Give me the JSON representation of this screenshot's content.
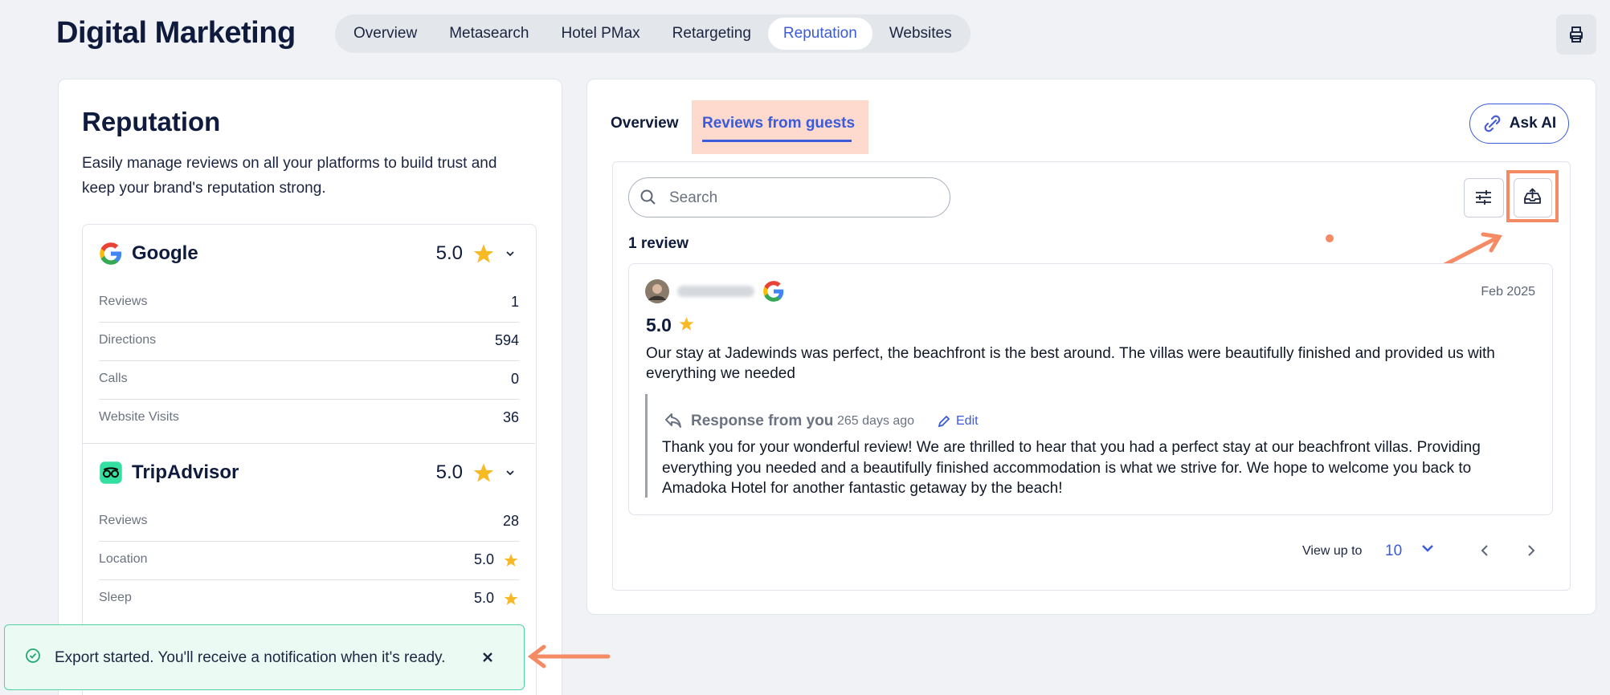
{
  "header": {
    "title": "Digital Marketing",
    "tabs": [
      "Overview",
      "Metasearch",
      "Hotel PMax",
      "Retargeting",
      "Reputation",
      "Websites"
    ],
    "active_tab": 4
  },
  "sidebar": {
    "title": "Reputation",
    "description": "Easily manage reviews on all your platforms to build trust and keep your brand's reputation strong.",
    "platforms": [
      {
        "name": "Google",
        "rating": "5.0",
        "rows": [
          {
            "label": "Reviews",
            "value": "1"
          },
          {
            "label": "Directions",
            "value": "594"
          },
          {
            "label": "Calls",
            "value": "0"
          },
          {
            "label": "Website Visits",
            "value": "36"
          }
        ]
      },
      {
        "name": "TripAdvisor",
        "rating": "5.0",
        "rows": [
          {
            "label": "Reviews",
            "value": "28"
          },
          {
            "label": "Location",
            "value": "5.0",
            "star": true
          },
          {
            "label": "Sleep",
            "value": "5.0",
            "star": true
          }
        ]
      }
    ]
  },
  "main": {
    "tabs": [
      "Overview",
      "Reviews from guests"
    ],
    "active_tab": 1,
    "ask_ai": "Ask AI",
    "search_placeholder": "Search",
    "count": "1 review",
    "review": {
      "date": "Feb 2025",
      "rating": "5.0",
      "text": "Our stay at Jadewinds was perfect, the beachfront is the best around. The villas were beautifully finished and provided us with everything we needed",
      "response": {
        "title": "Response from you",
        "age": "265 days ago",
        "edit": "Edit",
        "text": "Thank you for your wonderful review! We are thrilled to hear that you had a perfect stay at our beachfront villas. Providing everything you needed and a beautifully finished accommodation is what we strive for. We hope to welcome you back to Amadoka Hotel for another fantastic getaway by the beach!"
      }
    },
    "pagination": {
      "label": "View up to",
      "value": "10"
    }
  },
  "toast": {
    "message": "Export started. You'll receive a notification when it's ready."
  }
}
